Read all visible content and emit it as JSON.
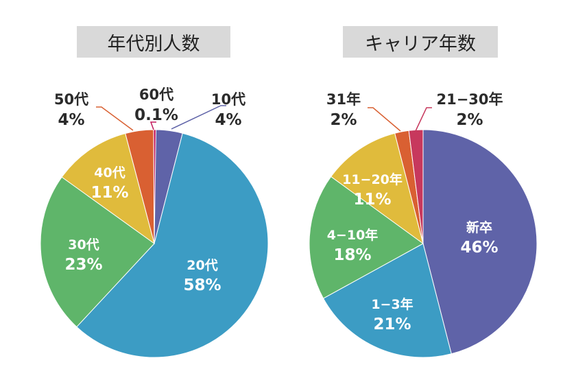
{
  "chart_data": [
    {
      "type": "pie",
      "title": "年代別人数",
      "slices": [
        {
          "label": "10代",
          "pct": "4%",
          "value": 4,
          "color": "#5f63a8"
        },
        {
          "label": "20代",
          "pct": "58%",
          "value": 58,
          "color": "#3c9cc4"
        },
        {
          "label": "30代",
          "pct": "23%",
          "value": 23,
          "color": "#5fb56a"
        },
        {
          "label": "40代",
          "pct": "11%",
          "value": 11,
          "color": "#e0bb3c"
        },
        {
          "label": "50代",
          "pct": "4%",
          "value": 4,
          "color": "#d96032"
        },
        {
          "label": "60代",
          "pct": "0.1%",
          "value": 0.1,
          "color": "#c2185b"
        }
      ]
    },
    {
      "type": "pie",
      "title": "キャリア年数",
      "slices": [
        {
          "label": "新卒",
          "pct": "46%",
          "value": 46,
          "color": "#5f63a8"
        },
        {
          "label": "1−3年",
          "pct": "21%",
          "value": 21,
          "color": "#3c9cc4"
        },
        {
          "label": "4−10年",
          "pct": "18%",
          "value": 18,
          "color": "#5fb56a"
        },
        {
          "label": "11−20年",
          "pct": "11%",
          "value": 11,
          "color": "#e0bb3c"
        },
        {
          "label": "31年",
          "pct": "2%",
          "value": 2,
          "color": "#d96032"
        },
        {
          "label": "21−30年",
          "pct": "2%",
          "value": 2,
          "color": "#c7385d"
        }
      ]
    }
  ]
}
